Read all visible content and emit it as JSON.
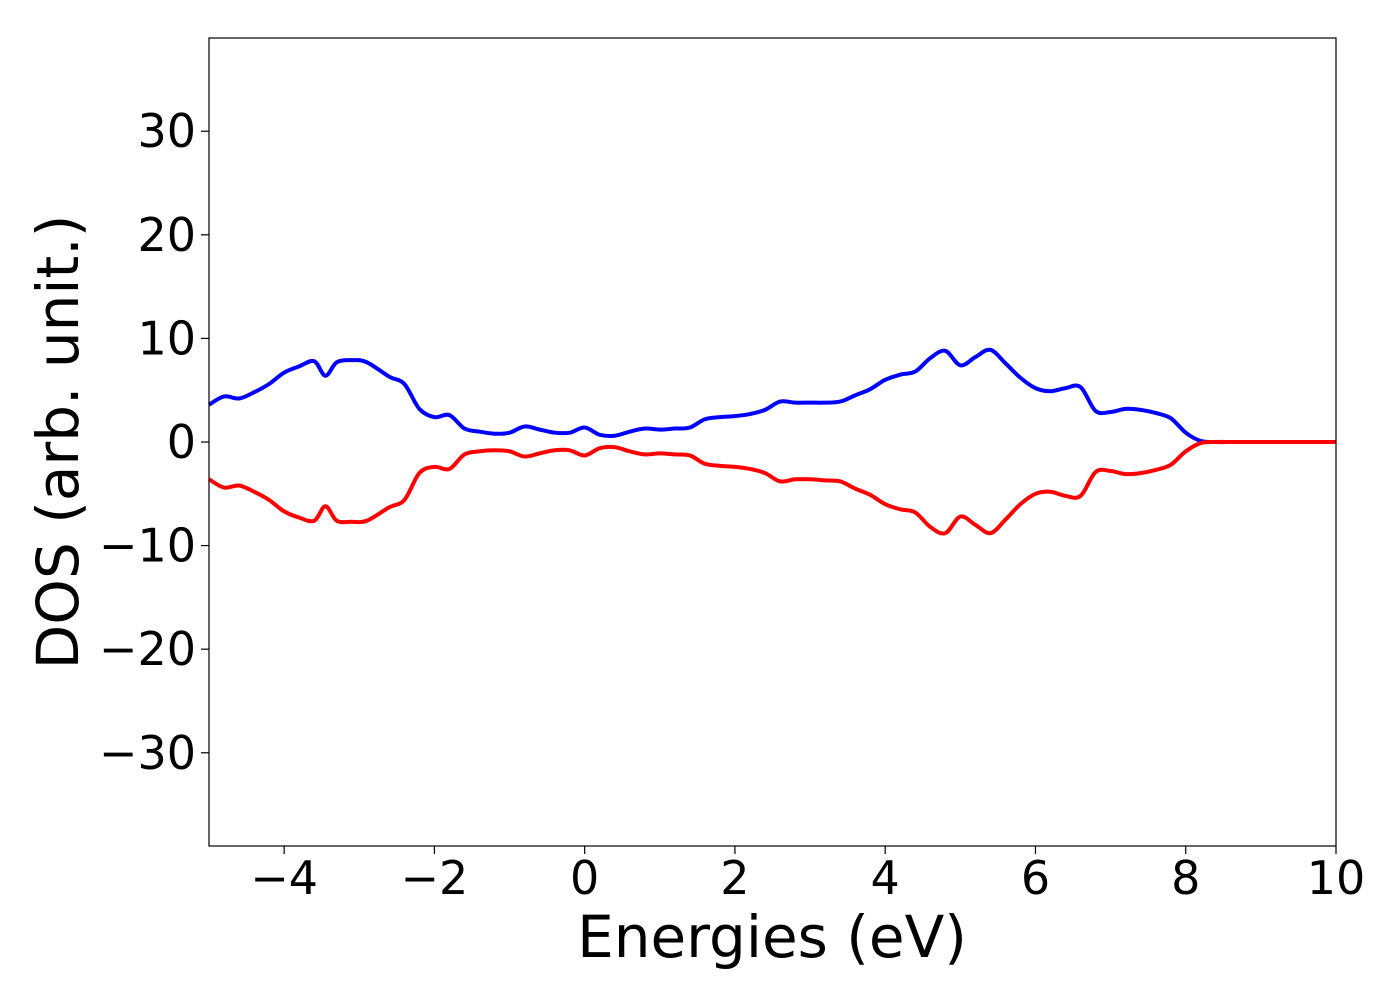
{
  "chart_data": {
    "type": "line",
    "title": "",
    "xlabel": "Energies (eV)",
    "ylabel": "DOS (arb. unit.)",
    "xlim": [
      -5,
      10
    ],
    "ylim": [
      -39,
      39
    ],
    "xticks": [
      -4,
      -2,
      0,
      2,
      4,
      6,
      8,
      10
    ],
    "xtick_labels": [
      "−4",
      "−2",
      "0",
      "2",
      "4",
      "6",
      "8",
      "10"
    ],
    "yticks": [
      30,
      20,
      10,
      0,
      -10,
      -20,
      -30
    ],
    "ytick_labels": [
      "30",
      "20",
      "10",
      "0",
      "−10",
      "−20",
      "−30"
    ],
    "grid": false,
    "legend": "none",
    "x": [
      -5.0,
      -4.8,
      -4.6,
      -4.4,
      -4.2,
      -4.0,
      -3.8,
      -3.6,
      -3.45,
      -3.3,
      -3.1,
      -2.9,
      -2.6,
      -2.4,
      -2.2,
      -2.0,
      -1.8,
      -1.6,
      -1.4,
      -1.2,
      -1.0,
      -0.8,
      -0.6,
      -0.4,
      -0.2,
      0.0,
      0.2,
      0.4,
      0.6,
      0.8,
      1.0,
      1.2,
      1.4,
      1.6,
      1.8,
      2.0,
      2.2,
      2.4,
      2.6,
      2.8,
      3.0,
      3.2,
      3.4,
      3.6,
      3.8,
      4.0,
      4.2,
      4.4,
      4.6,
      4.8,
      5.0,
      5.2,
      5.4,
      5.6,
      5.8,
      6.0,
      6.2,
      6.4,
      6.6,
      6.8,
      7.0,
      7.2,
      7.4,
      7.6,
      7.8,
      8.0,
      8.2,
      8.4,
      8.6,
      8.8,
      9.0,
      9.2,
      9.4,
      9.6,
      9.8,
      10.0
    ],
    "series": [
      {
        "color": "#0000ff",
        "values": [
          3.6,
          4.4,
          4.2,
          4.8,
          5.6,
          6.7,
          7.3,
          7.8,
          6.4,
          7.7,
          7.9,
          7.7,
          6.3,
          5.6,
          3.2,
          2.4,
          2.6,
          1.3,
          1.0,
          0.8,
          0.9,
          1.5,
          1.2,
          0.9,
          0.9,
          1.4,
          0.7,
          0.6,
          1.0,
          1.3,
          1.2,
          1.3,
          1.4,
          2.2,
          2.4,
          2.5,
          2.7,
          3.1,
          3.9,
          3.8,
          3.8,
          3.8,
          3.9,
          4.5,
          5.1,
          6.0,
          6.5,
          6.8,
          8.1,
          8.8,
          7.4,
          8.2,
          8.9,
          7.6,
          6.2,
          5.2,
          4.9,
          5.2,
          5.3,
          3.0,
          2.9,
          3.2,
          3.1,
          2.8,
          2.3,
          0.9,
          0.1,
          0.0,
          0.0,
          0.0,
          0.0,
          0.0,
          0.0,
          0.0,
          0.0,
          0.0
        ]
      },
      {
        "color": "#ff0000",
        "values": [
          -3.6,
          -4.4,
          -4.2,
          -4.8,
          -5.6,
          -6.7,
          -7.3,
          -7.6,
          -6.2,
          -7.6,
          -7.7,
          -7.6,
          -6.3,
          -5.6,
          -3.0,
          -2.4,
          -2.6,
          -1.2,
          -0.9,
          -0.8,
          -0.9,
          -1.4,
          -1.1,
          -0.8,
          -0.8,
          -1.3,
          -0.6,
          -0.5,
          -0.9,
          -1.2,
          -1.1,
          -1.2,
          -1.3,
          -2.1,
          -2.3,
          -2.4,
          -2.6,
          -3.0,
          -3.8,
          -3.6,
          -3.6,
          -3.7,
          -3.8,
          -4.5,
          -5.1,
          -6.0,
          -6.5,
          -6.8,
          -8.2,
          -8.8,
          -7.2,
          -8.0,
          -8.8,
          -7.5,
          -6.0,
          -5.0,
          -4.8,
          -5.2,
          -5.2,
          -2.9,
          -2.8,
          -3.1,
          -3.0,
          -2.7,
          -2.2,
          -0.9,
          -0.1,
          0.0,
          0.0,
          0.0,
          0.0,
          0.0,
          0.0,
          0.0,
          0.0,
          0.0
        ]
      }
    ]
  }
}
